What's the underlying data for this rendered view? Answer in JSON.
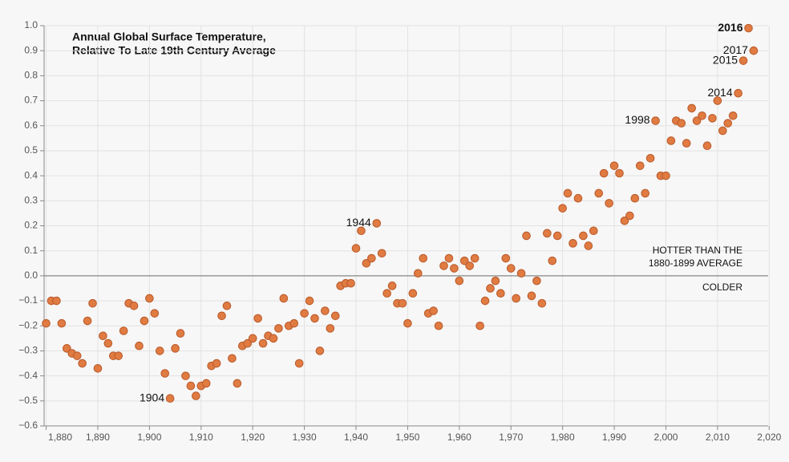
{
  "chart_data": {
    "type": "scatter",
    "title": [
      "Annual Global Surface Temperature,",
      "Relative To Late 19th Century Average"
    ],
    "zone_labels": {
      "above": [
        "HOTTER THAN THE",
        "1880-1899 AVERAGE"
      ],
      "below": "COLDER"
    },
    "x": [
      1880,
      1881,
      1882,
      1883,
      1884,
      1885,
      1886,
      1887,
      1888,
      1889,
      1890,
      1891,
      1892,
      1893,
      1894,
      1895,
      1896,
      1897,
      1898,
      1899,
      1900,
      1901,
      1902,
      1903,
      1904,
      1905,
      1906,
      1907,
      1908,
      1909,
      1910,
      1911,
      1912,
      1913,
      1914,
      1915,
      1916,
      1917,
      1918,
      1919,
      1920,
      1921,
      1922,
      1923,
      1924,
      1925,
      1926,
      1927,
      1928,
      1929,
      1930,
      1931,
      1932,
      1933,
      1934,
      1935,
      1936,
      1937,
      1938,
      1939,
      1940,
      1941,
      1942,
      1943,
      1944,
      1945,
      1946,
      1947,
      1948,
      1949,
      1950,
      1951,
      1952,
      1953,
      1954,
      1955,
      1956,
      1957,
      1958,
      1959,
      1960,
      1961,
      1962,
      1963,
      1964,
      1965,
      1966,
      1967,
      1968,
      1969,
      1970,
      1971,
      1972,
      1973,
      1974,
      1975,
      1976,
      1977,
      1978,
      1979,
      1980,
      1981,
      1982,
      1983,
      1984,
      1985,
      1986,
      1987,
      1988,
      1989,
      1990,
      1991,
      1992,
      1993,
      1994,
      1995,
      1996,
      1997,
      1998,
      1999,
      2000,
      2001,
      2002,
      2003,
      2004,
      2005,
      2006,
      2007,
      2008,
      2009,
      2010,
      2011,
      2012,
      2013,
      2014,
      2015,
      2016,
      2017
    ],
    "values": [
      -0.19,
      -0.1,
      -0.1,
      -0.19,
      -0.29,
      -0.31,
      -0.32,
      -0.35,
      -0.18,
      -0.11,
      -0.37,
      -0.24,
      -0.27,
      -0.32,
      -0.32,
      -0.22,
      -0.11,
      -0.12,
      -0.28,
      -0.18,
      -0.09,
      -0.15,
      -0.3,
      -0.39,
      -0.49,
      -0.29,
      -0.23,
      -0.4,
      -0.44,
      -0.48,
      -0.44,
      -0.43,
      -0.36,
      -0.35,
      -0.16,
      -0.12,
      -0.33,
      -0.43,
      -0.28,
      -0.27,
      -0.25,
      -0.17,
      -0.27,
      -0.24,
      -0.25,
      -0.21,
      -0.09,
      -0.2,
      -0.19,
      -0.35,
      -0.15,
      -0.1,
      -0.17,
      -0.3,
      -0.14,
      -0.21,
      -0.16,
      -0.04,
      -0.03,
      -0.03,
      0.11,
      0.18,
      0.05,
      0.07,
      0.21,
      0.09,
      -0.07,
      -0.04,
      -0.11,
      -0.11,
      -0.19,
      -0.07,
      0.01,
      0.07,
      -0.15,
      -0.14,
      -0.2,
      0.04,
      0.07,
      0.03,
      -0.02,
      0.06,
      0.04,
      0.07,
      -0.2,
      -0.1,
      -0.05,
      -0.02,
      -0.07,
      0.07,
      0.03,
      -0.09,
      0.01,
      0.16,
      -0.08,
      -0.02,
      -0.11,
      0.17,
      0.06,
      0.16,
      0.27,
      0.33,
      0.13,
      0.31,
      0.16,
      0.12,
      0.18,
      0.33,
      0.41,
      0.29,
      0.44,
      0.41,
      0.22,
      0.24,
      0.31,
      0.44,
      0.33,
      0.47,
      0.62,
      0.4,
      0.4,
      0.54,
      0.62,
      0.61,
      0.53,
      0.67,
      0.62,
      0.64,
      0.52,
      0.63,
      0.7,
      0.58,
      0.61,
      0.64,
      0.73,
      0.86,
      0.99,
      0.9
    ],
    "point_labels": [
      null,
      null,
      null,
      null,
      null,
      null,
      null,
      null,
      null,
      null,
      null,
      null,
      null,
      null,
      null,
      null,
      null,
      null,
      null,
      null,
      null,
      null,
      null,
      null,
      "1904",
      null,
      null,
      null,
      null,
      null,
      null,
      null,
      null,
      null,
      null,
      null,
      null,
      null,
      null,
      null,
      null,
      null,
      null,
      null,
      null,
      null,
      null,
      null,
      null,
      null,
      null,
      null,
      null,
      null,
      null,
      null,
      null,
      null,
      null,
      null,
      null,
      null,
      null,
      null,
      "1944",
      null,
      null,
      null,
      null,
      null,
      null,
      null,
      null,
      null,
      null,
      null,
      null,
      null,
      null,
      null,
      null,
      null,
      null,
      null,
      null,
      null,
      null,
      null,
      null,
      null,
      null,
      null,
      null,
      null,
      null,
      null,
      null,
      null,
      null,
      null,
      null,
      null,
      null,
      null,
      null,
      null,
      null,
      null,
      null,
      null,
      null,
      null,
      null,
      null,
      null,
      null,
      null,
      null,
      "1998",
      null,
      null,
      null,
      null,
      null,
      null,
      null,
      null,
      null,
      null,
      null,
      null,
      null,
      null,
      null,
      "2014",
      "2015",
      "2016",
      "2017"
    ],
    "color": "#e07b42",
    "xlim": [
      1879.6,
      2019.8
    ],
    "ylim": [
      -0.6,
      1.0
    ],
    "xticks": [
      {
        "value": 1880,
        "label": "1,880"
      },
      {
        "value": 1890,
        "label": "1,890"
      },
      {
        "value": 1900,
        "label": "1,900"
      },
      {
        "value": 1910,
        "label": "1,910"
      },
      {
        "value": 1920,
        "label": "1,920"
      },
      {
        "value": 1930,
        "label": "1,930"
      },
      {
        "value": 1940,
        "label": "1,940"
      },
      {
        "value": 1950,
        "label": "1,950"
      },
      {
        "value": 1960,
        "label": "1,960"
      },
      {
        "value": 1970,
        "label": "1,970"
      },
      {
        "value": 1980,
        "label": "1,980"
      },
      {
        "value": 1990,
        "label": "1,990"
      },
      {
        "value": 2000,
        "label": "2,000"
      },
      {
        "value": 2010,
        "label": "2,010"
      },
      {
        "value": 2020,
        "label": "2,020"
      }
    ],
    "yticks": [
      {
        "value": -0.6,
        "label": "−0.6"
      },
      {
        "value": -0.5,
        "label": "−0.5"
      },
      {
        "value": -0.4,
        "label": "−0.4"
      },
      {
        "value": -0.3,
        "label": "−0.3"
      },
      {
        "value": -0.2,
        "label": "−0.2"
      },
      {
        "value": -0.1,
        "label": "−0.1"
      },
      {
        "value": 0,
        "label": "0.0"
      },
      {
        "value": 0.1,
        "label": "0.1"
      },
      {
        "value": 0.2,
        "label": "0.2"
      },
      {
        "value": 0.3,
        "label": "0.3"
      },
      {
        "value": 0.4,
        "label": "0.4"
      },
      {
        "value": 0.5,
        "label": "0.5"
      },
      {
        "value": 0.6,
        "label": "0.6"
      },
      {
        "value": 0.7,
        "label": "0.7"
      },
      {
        "value": 0.8,
        "label": "0.8"
      },
      {
        "value": 0.9,
        "label": "0.9"
      },
      {
        "value": 1,
        "label": "1.0"
      }
    ],
    "grid": true
  }
}
